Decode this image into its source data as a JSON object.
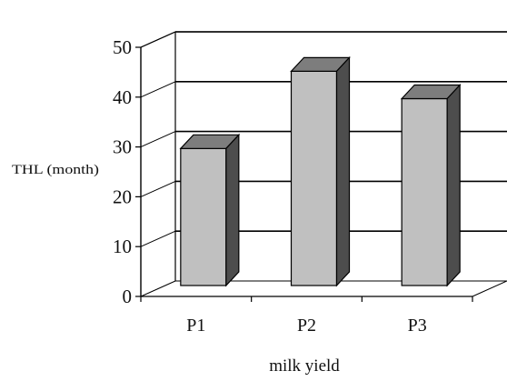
{
  "chart_data": {
    "type": "bar",
    "style": "3d-column",
    "categories": [
      "P1",
      "P2",
      "P3"
    ],
    "values": [
      27.5,
      43,
      37.5
    ],
    "ylabel": "THL (month)",
    "xlabel": "milk yield",
    "ylim": [
      0,
      50
    ],
    "yticks": [
      0,
      10,
      20,
      30,
      40,
      50
    ],
    "grid": true,
    "colors": {
      "bar_front": "#c0c0c0",
      "bar_top": "#7d7d7d",
      "bar_side": "#4d4d4d",
      "grid": "#000000",
      "axis": "#000000",
      "background": "#ffffff"
    }
  }
}
